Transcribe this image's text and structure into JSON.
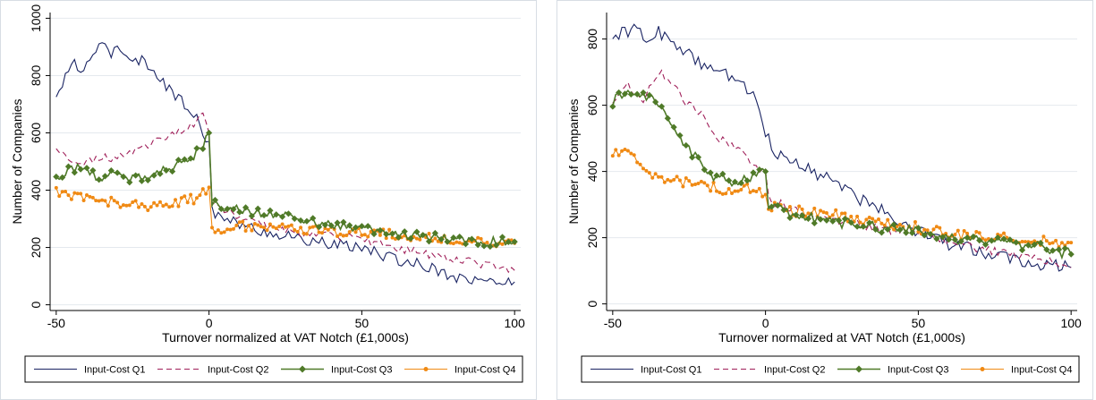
{
  "colors": {
    "q1": "#1a2463",
    "q2": "#a0205a",
    "q3": "#4f7a28",
    "q4": "#f08a14",
    "grid": "#e4e9ee",
    "frame": "#d7dde4"
  },
  "chart_data": [
    {
      "type": "line",
      "xlabel": "Turnover normalized at VAT Notch (£1,000s)",
      "ylabel": "Number of Companies",
      "xlim": [
        -52,
        102
      ],
      "ylim": [
        -20,
        1020
      ],
      "xticks": [
        -50,
        0,
        50,
        100
      ],
      "xtick_labels": [
        "-50",
        "0",
        "50",
        "100"
      ],
      "yticks": [
        0,
        200,
        400,
        600,
        800,
        1000
      ],
      "ytick_labels": [
        "0",
        "200",
        "400",
        "600",
        "800",
        "1000"
      ],
      "grid": true,
      "legend_position": "bottom",
      "series": [
        {
          "name": "Input-Cost Q1",
          "style": "solid",
          "points": [
            [
              -50,
              720
            ],
            [
              -47,
              790
            ],
            [
              -44,
              860
            ],
            [
              -42,
              800
            ],
            [
              -38,
              880
            ],
            [
              -35,
              900
            ],
            [
              -32,
              880
            ],
            [
              -30,
              905
            ],
            [
              -27,
              870
            ],
            [
              -24,
              860
            ],
            [
              -20,
              840
            ],
            [
              -17,
              810
            ],
            [
              -14,
              760
            ],
            [
              -10,
              720
            ],
            [
              -7,
              690
            ],
            [
              -4,
              650
            ],
            [
              -2,
              600
            ],
            [
              0,
              570
            ],
            [
              1,
              330
            ],
            [
              5,
              300
            ],
            [
              10,
              280
            ],
            [
              20,
              250
            ],
            [
              30,
              230
            ],
            [
              40,
              210
            ],
            [
              50,
              200
            ],
            [
              60,
              160
            ],
            [
              70,
              140
            ],
            [
              80,
              100
            ],
            [
              90,
              80
            ],
            [
              100,
              80
            ]
          ]
        },
        {
          "name": "Input-Cost Q2",
          "style": "dashed",
          "points": [
            [
              -50,
              540
            ],
            [
              -45,
              510
            ],
            [
              -40,
              500
            ],
            [
              -35,
              520
            ],
            [
              -30,
              510
            ],
            [
              -25,
              540
            ],
            [
              -20,
              560
            ],
            [
              -15,
              580
            ],
            [
              -10,
              600
            ],
            [
              -5,
              630
            ],
            [
              -2,
              680
            ],
            [
              0,
              600
            ],
            [
              1,
              360
            ],
            [
              5,
              330
            ],
            [
              10,
              300
            ],
            [
              20,
              270
            ],
            [
              30,
              250
            ],
            [
              40,
              240
            ],
            [
              50,
              230
            ],
            [
              60,
              200
            ],
            [
              70,
              180
            ],
            [
              80,
              160
            ],
            [
              90,
              140
            ],
            [
              100,
              120
            ]
          ]
        },
        {
          "name": "Input-Cost Q3",
          "style": "diamond",
          "points": [
            [
              -50,
              440
            ],
            [
              -45,
              480
            ],
            [
              -40,
              470
            ],
            [
              -35,
              440
            ],
            [
              -30,
              460
            ],
            [
              -25,
              440
            ],
            [
              -20,
              450
            ],
            [
              -15,
              470
            ],
            [
              -10,
              490
            ],
            [
              -5,
              520
            ],
            [
              -2,
              560
            ],
            [
              0,
              600
            ],
            [
              1,
              360
            ],
            [
              5,
              340
            ],
            [
              10,
              330
            ],
            [
              20,
              320
            ],
            [
              30,
              300
            ],
            [
              40,
              280
            ],
            [
              50,
              260
            ],
            [
              60,
              250
            ],
            [
              70,
              240
            ],
            [
              80,
              230
            ],
            [
              90,
              220
            ],
            [
              100,
              220
            ]
          ]
        },
        {
          "name": "Input-Cost Q4",
          "style": "dot",
          "points": [
            [
              -50,
              400
            ],
            [
              -45,
              380
            ],
            [
              -40,
              375
            ],
            [
              -35,
              365
            ],
            [
              -30,
              355
            ],
            [
              -25,
              350
            ],
            [
              -20,
              345
            ],
            [
              -15,
              350
            ],
            [
              -10,
              360
            ],
            [
              -5,
              370
            ],
            [
              -2,
              390
            ],
            [
              0,
              410
            ],
            [
              1,
              260
            ],
            [
              5,
              270
            ],
            [
              10,
              275
            ],
            [
              20,
              270
            ],
            [
              30,
              265
            ],
            [
              40,
              255
            ],
            [
              50,
              250
            ],
            [
              60,
              245
            ],
            [
              70,
              235
            ],
            [
              80,
              225
            ],
            [
              90,
              220
            ],
            [
              100,
              215
            ]
          ]
        }
      ]
    },
    {
      "type": "line",
      "xlabel": "Turnover normalized at VAT Notch (£1,000s)",
      "ylabel": "Number of Companies",
      "xlim": [
        -52,
        102
      ],
      "ylim": [
        -20,
        880
      ],
      "xticks": [
        -50,
        0,
        50,
        100
      ],
      "xtick_labels": [
        "-50",
        "0",
        "50",
        "100"
      ],
      "yticks": [
        0,
        200,
        400,
        600,
        800
      ],
      "ytick_labels": [
        "0",
        "200",
        "400",
        "600",
        "800"
      ],
      "grid": true,
      "legend_position": "bottom",
      "series": [
        {
          "name": "Input-Cost Q1",
          "style": "solid",
          "points": [
            [
              -50,
              820
            ],
            [
              -45,
              815
            ],
            [
              -43,
              850
            ],
            [
              -40,
              800
            ],
            [
              -35,
              820
            ],
            [
              -30,
              790
            ],
            [
              -25,
              750
            ],
            [
              -20,
              720
            ],
            [
              -15,
              700
            ],
            [
              -10,
              680
            ],
            [
              -5,
              640
            ],
            [
              -2,
              600
            ],
            [
              0,
              520
            ],
            [
              3,
              460
            ],
            [
              5,
              450
            ],
            [
              10,
              430
            ],
            [
              15,
              400
            ],
            [
              20,
              380
            ],
            [
              25,
              360
            ],
            [
              30,
              320
            ],
            [
              35,
              300
            ],
            [
              40,
              280
            ],
            [
              45,
              240
            ],
            [
              50,
              220
            ],
            [
              60,
              180
            ],
            [
              70,
              160
            ],
            [
              80,
              140
            ],
            [
              90,
              120
            ],
            [
              100,
              110
            ]
          ]
        },
        {
          "name": "Input-Cost Q2",
          "style": "dashed",
          "points": [
            [
              -50,
              620
            ],
            [
              -45,
              660
            ],
            [
              -40,
              610
            ],
            [
              -35,
              700
            ],
            [
              -30,
              660
            ],
            [
              -25,
              600
            ],
            [
              -20,
              560
            ],
            [
              -15,
              500
            ],
            [
              -10,
              470
            ],
            [
              -5,
              430
            ],
            [
              0,
              400
            ],
            [
              1,
              320
            ],
            [
              5,
              300
            ],
            [
              10,
              280
            ],
            [
              20,
              260
            ],
            [
              30,
              240
            ],
            [
              40,
              225
            ],
            [
              50,
              215
            ],
            [
              60,
              190
            ],
            [
              70,
              170
            ],
            [
              80,
              150
            ],
            [
              90,
              130
            ],
            [
              100,
              110
            ]
          ]
        },
        {
          "name": "Input-Cost Q3",
          "style": "diamond",
          "points": [
            [
              -50,
              610
            ],
            [
              -45,
              650
            ],
            [
              -40,
              640
            ],
            [
              -35,
              600
            ],
            [
              -30,
              530
            ],
            [
              -25,
              470
            ],
            [
              -20,
              400
            ],
            [
              -15,
              380
            ],
            [
              -10,
              370
            ],
            [
              -5,
              380
            ],
            [
              0,
              400
            ],
            [
              1,
              290
            ],
            [
              5,
              285
            ],
            [
              10,
              270
            ],
            [
              20,
              250
            ],
            [
              30,
              240
            ],
            [
              40,
              230
            ],
            [
              50,
              220
            ],
            [
              60,
              200
            ],
            [
              70,
              190
            ],
            [
              80,
              180
            ],
            [
              90,
              170
            ],
            [
              100,
              150
            ]
          ]
        },
        {
          "name": "Input-Cost Q4",
          "style": "dot",
          "points": [
            [
              -50,
              460
            ],
            [
              -45,
              450
            ],
            [
              -40,
              410
            ],
            [
              -35,
              380
            ],
            [
              -30,
              370
            ],
            [
              -25,
              370
            ],
            [
              -20,
              360
            ],
            [
              -15,
              350
            ],
            [
              -10,
              340
            ],
            [
              -5,
              350
            ],
            [
              0,
              330
            ],
            [
              1,
              300
            ],
            [
              5,
              290
            ],
            [
              10,
              280
            ],
            [
              20,
              270
            ],
            [
              30,
              260
            ],
            [
              40,
              240
            ],
            [
              50,
              230
            ],
            [
              60,
              215
            ],
            [
              70,
              205
            ],
            [
              80,
              195
            ],
            [
              90,
              190
            ],
            [
              100,
              185
            ]
          ]
        }
      ]
    }
  ]
}
